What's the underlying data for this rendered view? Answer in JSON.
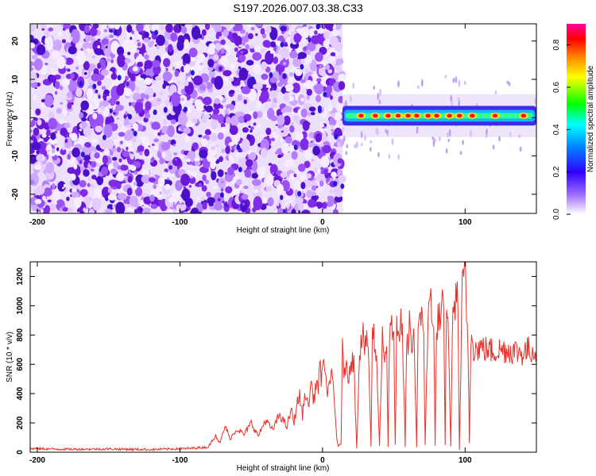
{
  "title": "S197.2026.007.03.38.C33",
  "chart_data": [
    {
      "type": "heatmap",
      "name": "spectrogram",
      "xlabel": "Height of straight line (km)",
      "ylabel": "Frequency (Hz)",
      "xlim": [
        -205,
        150
      ],
      "ylim": [
        -25,
        24.5
      ],
      "xticks": [
        -200,
        -100,
        0,
        100
      ],
      "xtick_labels": [
        "-200",
        "-100",
        "0",
        "100"
      ],
      "yticks": [
        -20,
        -10,
        0,
        10,
        20
      ],
      "ytick_labels": [
        "-20",
        "-10",
        "0",
        "10",
        "20"
      ],
      "noise_region_x": [
        -205,
        14
      ],
      "signal_band": {
        "x_start": 14,
        "x_end": 150,
        "center_hz": 0.5,
        "half_width_hz": 1.6
      },
      "hot_spots_x": [
        27,
        37,
        46,
        53,
        60,
        66,
        74,
        80,
        89,
        96,
        105,
        121,
        141
      ],
      "colorbar": {
        "label": "Normalized spectral amplitude",
        "range": [
          0,
          0.9
        ],
        "ticks": [
          0.0,
          0.2,
          0.4,
          0.6,
          0.8
        ],
        "tick_labels": [
          "0.0",
          "0.2",
          "0.4",
          "0.6",
          "0.8"
        ],
        "colors": [
          "#ffffff",
          "#8a2be2",
          "#0000ff",
          "#00ffff",
          "#00ff00",
          "#ffff00",
          "#ff8000",
          "#ff0000",
          "#ff0090"
        ]
      }
    },
    {
      "type": "line",
      "name": "snr",
      "xlabel": "Height of straight line (km)",
      "ylabel": "SNR (10 * v/v)",
      "xlim": [
        -205,
        150
      ],
      "ylim": [
        0,
        1300
      ],
      "xticks": [
        -200,
        -100,
        0,
        100
      ],
      "xtick_labels": [
        "-200",
        "-100",
        "0",
        "100"
      ],
      "yticks": [
        0,
        200,
        400,
        600,
        800,
        1000,
        1200
      ],
      "ytick_labels": [
        "0",
        "200",
        "400",
        "600",
        "800",
        "1000",
        "1200"
      ],
      "color": "#e8312a",
      "series": [
        {
          "name": "SNR",
          "x": [
            -205,
            -180,
            -150,
            -120,
            -95,
            -80,
            -75,
            -72,
            -68,
            -65,
            -60,
            -55,
            -50,
            -45,
            -40,
            -35,
            -30,
            -25,
            -22,
            -20,
            -18,
            -16,
            -14,
            -12,
            -10,
            -8,
            -6,
            -4,
            -3,
            -2,
            -1,
            0,
            2,
            4,
            6,
            8,
            10,
            11,
            12,
            13,
            14,
            15,
            16,
            18,
            20,
            22,
            24,
            26,
            27,
            28,
            30,
            32,
            34,
            35,
            36,
            37,
            38,
            40,
            42,
            43,
            44,
            45,
            46,
            47,
            48,
            50,
            51,
            52,
            53,
            54,
            55,
            56,
            58,
            59,
            60,
            61,
            62,
            63,
            64,
            66,
            67,
            68,
            69,
            70,
            71,
            72,
            74,
            75,
            76,
            77,
            78,
            79,
            80,
            82,
            83,
            84,
            85,
            86,
            87,
            88,
            90,
            91,
            92,
            93,
            94,
            95,
            96,
            98,
            99,
            100,
            101,
            102,
            103,
            104,
            105,
            106,
            108,
            110,
            115,
            120,
            125,
            130,
            135,
            140,
            145,
            150
          ],
          "y": [
            25,
            20,
            22,
            18,
            25,
            35,
            120,
            60,
            180,
            90,
            160,
            120,
            200,
            110,
            220,
            150,
            260,
            170,
            290,
            200,
            330,
            380,
            250,
            420,
            300,
            480,
            350,
            520,
            400,
            600,
            500,
            640,
            480,
            420,
            550,
            380,
            90,
            40,
            60,
            50,
            700,
            560,
            600,
            500,
            650,
            600,
            30,
            700,
            750,
            820,
            700,
            760,
            40,
            780,
            820,
            700,
            600,
            50,
            820,
            650,
            700,
            720,
            40,
            800,
            860,
            750,
            45,
            820,
            760,
            700,
            900,
            820,
            40,
            760,
            700,
            880,
            800,
            720,
            860,
            40,
            780,
            840,
            900,
            1000,
            820,
            50,
            880,
            1000,
            1100,
            960,
            820,
            40,
            860,
            940,
            860,
            1000,
            900,
            50,
            1100,
            880,
            40,
            840,
            920,
            1000,
            1180,
            900,
            20,
            1100,
            1180,
            1290,
            900,
            780,
            60,
            760,
            860,
            720,
            700,
            720,
            700,
            690,
            700,
            700,
            690,
            680,
            700,
            690
          ]
        }
      ]
    }
  ]
}
